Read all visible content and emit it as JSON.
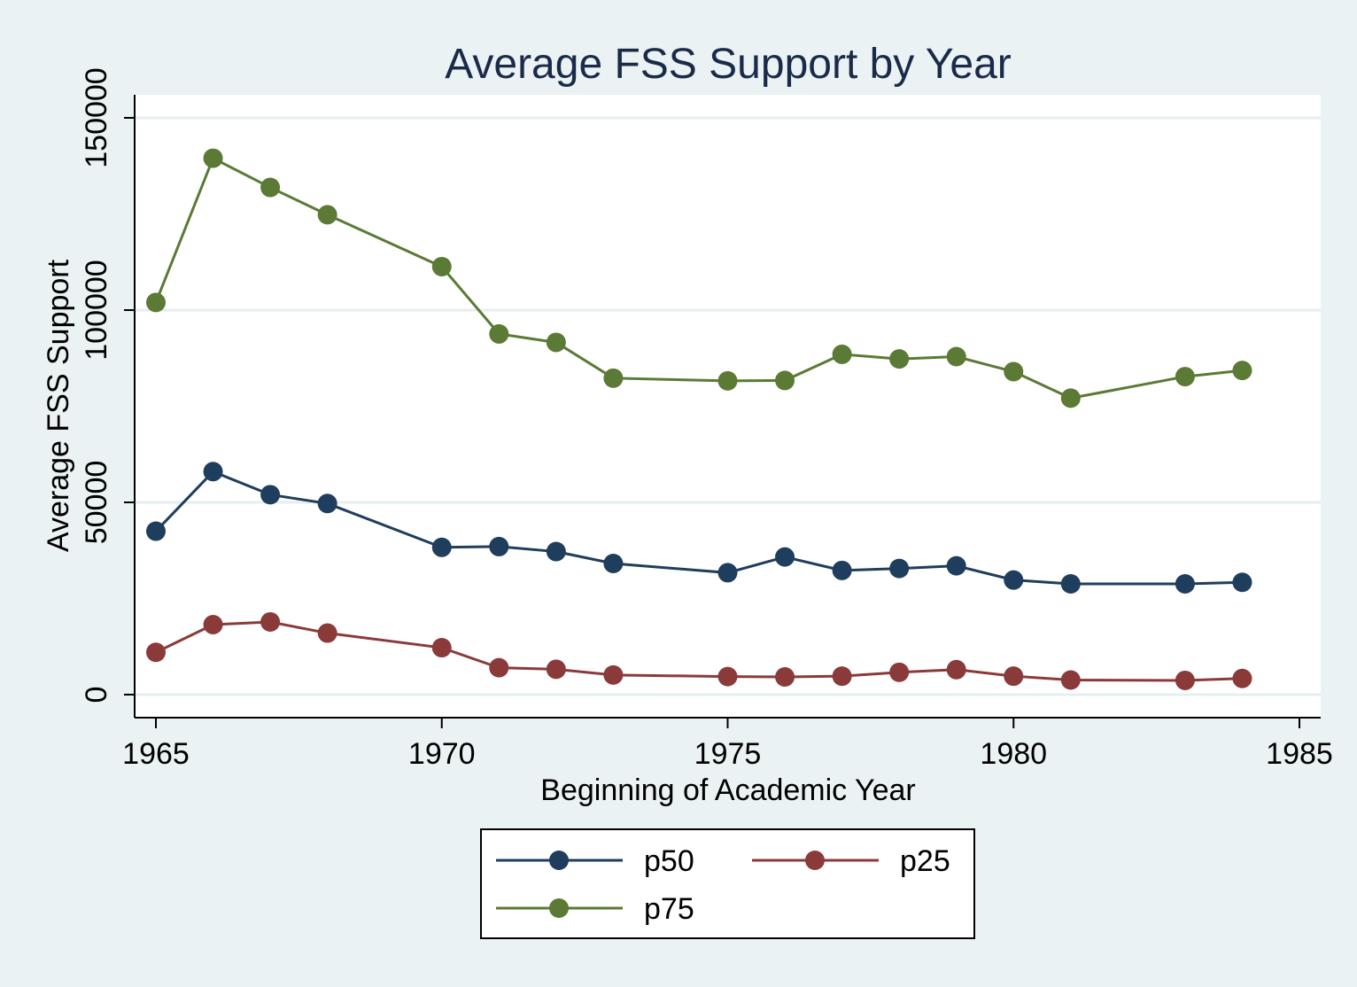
{
  "chart_data": {
    "type": "line",
    "title": "Average FSS Support by Year",
    "xlabel": "Beginning of Academic Year",
    "ylabel": "Average FSS Support",
    "xlim": [
      1965,
      1985
    ],
    "ylim": [
      0,
      150000
    ],
    "xticks": [
      1965,
      1970,
      1975,
      1980,
      1985
    ],
    "yticks": [
      0,
      50000,
      100000,
      150000
    ],
    "grid": true,
    "legend_position": "bottom",
    "series": [
      {
        "name": "p50",
        "color": "#1f3d5d",
        "points": [
          [
            1965,
            42500
          ],
          [
            1966,
            58000
          ],
          [
            1967,
            52000
          ],
          [
            1968,
            49700
          ],
          [
            1970,
            38300
          ],
          [
            1971,
            38500
          ],
          [
            1972,
            37200
          ],
          [
            1973,
            34100
          ],
          [
            1975,
            31700
          ],
          [
            1976,
            35800
          ],
          [
            1977,
            32300
          ],
          [
            1978,
            32800
          ],
          [
            1979,
            33500
          ],
          [
            1980,
            29800
          ],
          [
            1981,
            28800
          ],
          [
            1983,
            28800
          ],
          [
            1984,
            29200
          ]
        ]
      },
      {
        "name": "p25",
        "color": "#8b3a3a",
        "points": [
          [
            1965,
            11000
          ],
          [
            1966,
            18200
          ],
          [
            1967,
            18900
          ],
          [
            1968,
            16000
          ],
          [
            1970,
            12200
          ],
          [
            1971,
            7000
          ],
          [
            1972,
            6600
          ],
          [
            1973,
            5100
          ],
          [
            1975,
            4700
          ],
          [
            1976,
            4600
          ],
          [
            1977,
            4800
          ],
          [
            1978,
            5800
          ],
          [
            1979,
            6500
          ],
          [
            1980,
            4800
          ],
          [
            1981,
            3800
          ],
          [
            1983,
            3700
          ],
          [
            1984,
            4200
          ]
        ]
      },
      {
        "name": "p75",
        "color": "#5a7a35",
        "points": [
          [
            1965,
            102000
          ],
          [
            1966,
            139500
          ],
          [
            1967,
            131900
          ],
          [
            1968,
            124800
          ],
          [
            1970,
            111300
          ],
          [
            1971,
            93800
          ],
          [
            1972,
            91600
          ],
          [
            1973,
            82300
          ],
          [
            1975,
            81600
          ],
          [
            1976,
            81700
          ],
          [
            1977,
            88500
          ],
          [
            1978,
            87300
          ],
          [
            1979,
            87900
          ],
          [
            1980,
            84000
          ],
          [
            1981,
            77100
          ],
          [
            1983,
            82700
          ],
          [
            1984,
            84300
          ]
        ]
      }
    ]
  }
}
